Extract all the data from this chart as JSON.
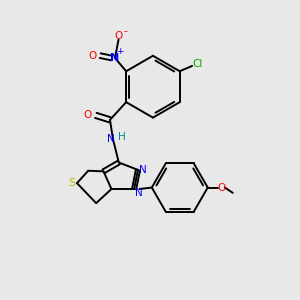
{
  "bg_color": "#e8e8e8",
  "bond_color": "#000000",
  "atom_colors": {
    "O": "#ff0000",
    "N": "#0000ff",
    "S": "#b8b800",
    "Cl": "#00aa00",
    "H": "#008888",
    "C": "#000000"
  },
  "lw": 1.4
}
